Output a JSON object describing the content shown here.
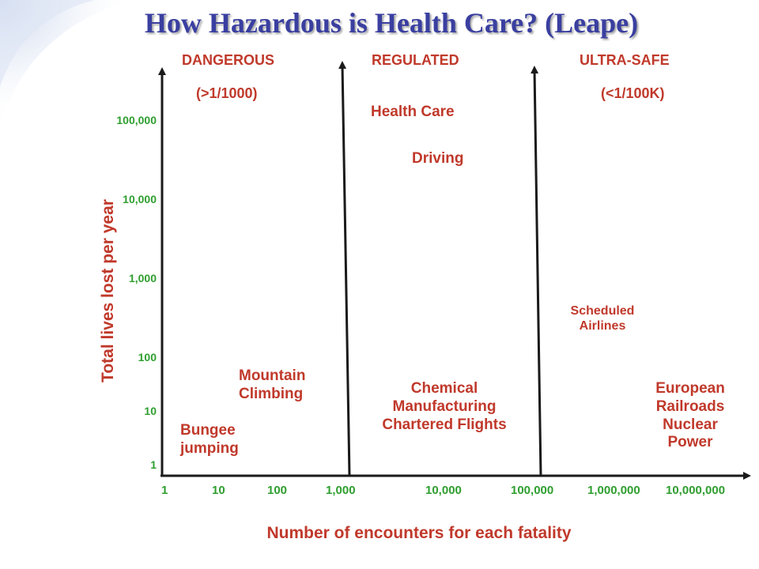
{
  "title": "How Hazardous is Health Care? (Leape)",
  "zones": {
    "dangerous": "DANGEROUS",
    "dangerous_threshold": "(>1/1000)",
    "regulated": "REGULATED",
    "ultra_safe": "ULTRA-SAFE",
    "ultra_safe_threshold": "(<1/100K)"
  },
  "activities": {
    "health_care": "Health Care",
    "driving": "Driving",
    "scheduled_airlines_1": "Scheduled",
    "scheduled_airlines_2": "Airlines",
    "mountain_climbing_1": "Mountain",
    "mountain_climbing_2": "Climbing",
    "bungee_1": "Bungee",
    "bungee_2": "jumping",
    "chemical_1": "Chemical",
    "chemical_2": "Manufacturing",
    "chartered": "Chartered Flights",
    "european_1": "European",
    "european_2": "Railroads",
    "nuclear_1": "Nuclear",
    "nuclear_2": "Power"
  },
  "y_axis": {
    "label": "Total lives lost per year",
    "ticks": [
      "100,000",
      "10,000",
      "1,000",
      "100",
      "10",
      "1"
    ]
  },
  "x_axis": {
    "label": "Number of encounters for each fatality",
    "ticks": [
      "1",
      "10",
      "100",
      "1,000",
      "10,000",
      "100,000",
      "1,000,000",
      "10,000,000"
    ]
  },
  "colors": {
    "title": "#3a3fa0",
    "label_red": "#c0392b",
    "tick_green": "#2e9e2e",
    "axis": "#1a1a1a",
    "corner_blue": "#c9d6ec"
  }
}
